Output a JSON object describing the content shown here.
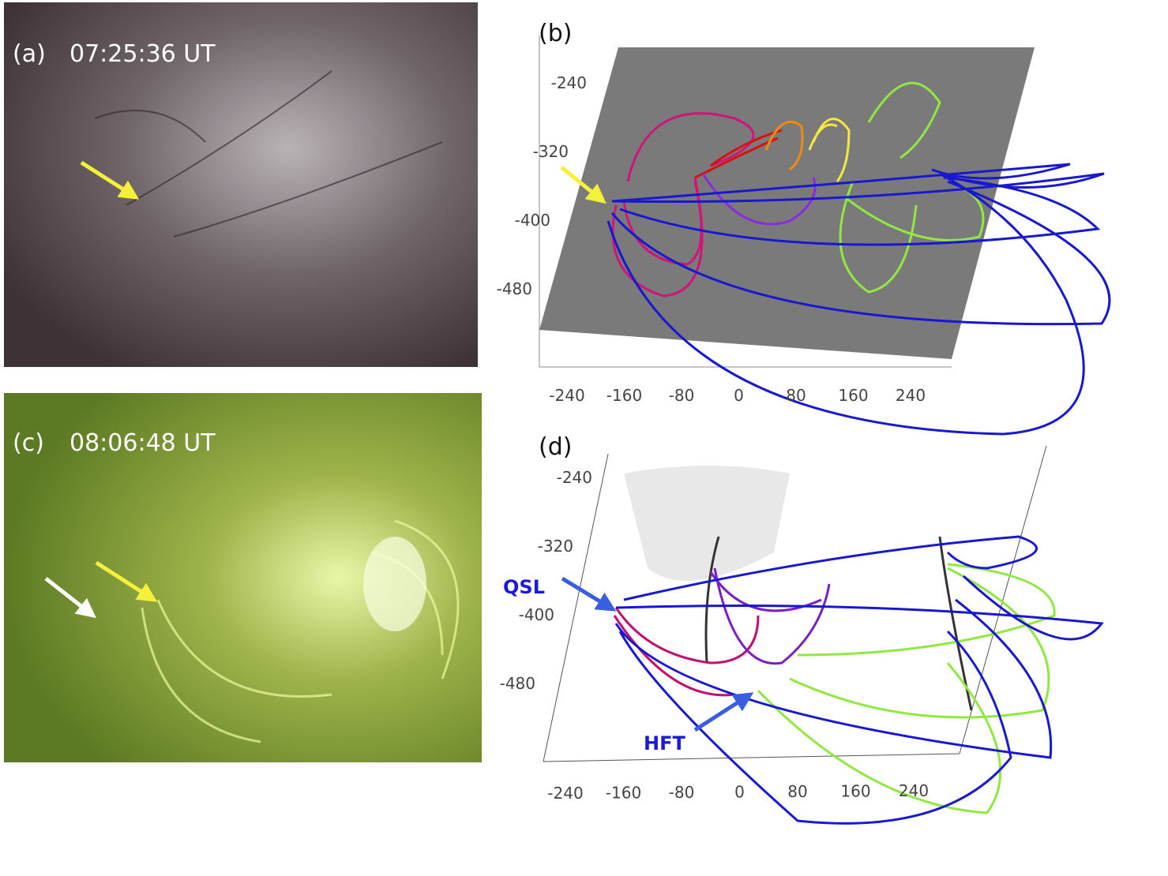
{
  "panels": [
    {
      "label": "(a)",
      "time": "07:25:36 UT"
    },
    {
      "label": "(b)",
      "yticks": [
        -240,
        -320,
        -400,
        -480
      ],
      "xticks": [
        -240,
        -160,
        -80,
        0,
        80,
        160,
        240
      ]
    },
    {
      "label": "(c)",
      "time": "08:06:48 UT"
    },
    {
      "label": "(d)",
      "yticks": [
        -240,
        -320,
        -400,
        -480
      ],
      "xticks": [
        -240,
        -160,
        -80,
        0,
        80,
        160,
        240
      ],
      "annotations": [
        "QSL",
        "HFT"
      ]
    }
  ]
}
